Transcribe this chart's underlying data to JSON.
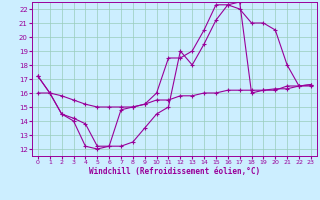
{
  "xlabel": "Windchill (Refroidissement éolien,°C)",
  "bg_color": "#cceeff",
  "grid_color": "#99ccbb",
  "line_color": "#990099",
  "xlim": [
    -0.5,
    23.5
  ],
  "ylim": [
    11.5,
    22.5
  ],
  "xticks": [
    0,
    1,
    2,
    3,
    4,
    5,
    6,
    7,
    8,
    9,
    10,
    11,
    12,
    13,
    14,
    15,
    16,
    17,
    18,
    19,
    20,
    21,
    22,
    23
  ],
  "yticks": [
    12,
    13,
    14,
    15,
    16,
    17,
    18,
    19,
    20,
    21,
    22
  ],
  "series1_x": [
    0,
    1,
    2,
    3,
    4,
    5,
    6,
    7,
    8,
    9,
    10,
    11,
    12,
    13,
    14,
    15,
    16,
    17,
    18,
    19,
    20,
    21,
    22,
    23
  ],
  "series1_y": [
    17.2,
    16.0,
    14.5,
    14.0,
    12.2,
    12.0,
    12.2,
    14.8,
    15.0,
    15.2,
    16.0,
    18.5,
    18.5,
    19.0,
    20.5,
    22.3,
    22.3,
    22.0,
    21.0,
    21.0,
    20.5,
    18.0,
    16.5,
    16.5
  ],
  "series2_x": [
    0,
    1,
    2,
    3,
    4,
    5,
    6,
    7,
    8,
    9,
    10,
    11,
    12,
    13,
    14,
    15,
    16,
    17,
    18,
    19,
    20,
    21,
    22,
    23
  ],
  "series2_y": [
    17.2,
    16.0,
    14.5,
    14.2,
    13.8,
    12.2,
    12.2,
    12.2,
    12.5,
    13.5,
    14.5,
    15.0,
    19.0,
    18.0,
    19.5,
    21.2,
    22.3,
    22.5,
    16.0,
    16.2,
    16.2,
    16.5,
    16.5,
    16.6
  ],
  "series3_x": [
    0,
    1,
    2,
    3,
    4,
    5,
    6,
    7,
    8,
    9,
    10,
    11,
    12,
    13,
    14,
    15,
    16,
    17,
    18,
    19,
    20,
    21,
    22,
    23
  ],
  "series3_y": [
    16.0,
    16.0,
    15.8,
    15.5,
    15.2,
    15.0,
    15.0,
    15.0,
    15.0,
    15.2,
    15.5,
    15.5,
    15.8,
    15.8,
    16.0,
    16.0,
    16.2,
    16.2,
    16.2,
    16.2,
    16.3,
    16.3,
    16.5,
    16.6
  ]
}
